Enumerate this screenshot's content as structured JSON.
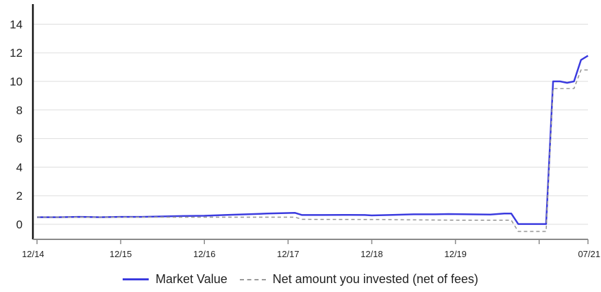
{
  "chart_data": {
    "type": "line",
    "title": "",
    "xlabel": "",
    "ylabel": "",
    "ylim": [
      -1,
      15
    ],
    "y_ticks": [
      0,
      2,
      4,
      6,
      8,
      10,
      12,
      14
    ],
    "x_ticks": [
      "12/14",
      "12/15",
      "12/16",
      "12/17",
      "12/18",
      "12/19",
      "07/21"
    ],
    "grid": "horizontal",
    "legend_position": "bottom",
    "colors": {
      "market_value": "#3a3adf",
      "net_invested": "#999999",
      "grid": "#dddddd",
      "axis": "#888888"
    },
    "series": [
      {
        "name": "Market Value",
        "style": "solid",
        "points": [
          [
            "2014-12",
            0.5
          ],
          [
            "2015-03",
            0.5
          ],
          [
            "2015-06",
            0.52
          ],
          [
            "2015-09",
            0.5
          ],
          [
            "2015-12",
            0.52
          ],
          [
            "2016-03",
            0.52
          ],
          [
            "2016-06",
            0.55
          ],
          [
            "2016-09",
            0.58
          ],
          [
            "2016-12",
            0.6
          ],
          [
            "2017-03",
            0.65
          ],
          [
            "2017-06",
            0.7
          ],
          [
            "2017-09",
            0.75
          ],
          [
            "2017-11",
            0.78
          ],
          [
            "2018-01",
            0.8
          ],
          [
            "2018-02",
            0.65
          ],
          [
            "2018-05",
            0.65
          ],
          [
            "2018-08",
            0.66
          ],
          [
            "2018-11",
            0.65
          ],
          [
            "2018-12",
            0.62
          ],
          [
            "2019-03",
            0.66
          ],
          [
            "2019-06",
            0.7
          ],
          [
            "2019-09",
            0.7
          ],
          [
            "2019-11",
            0.72
          ],
          [
            "2020-02",
            0.7
          ],
          [
            "2020-05",
            0.68
          ],
          [
            "2020-07",
            0.75
          ],
          [
            "2020-08",
            0.75
          ],
          [
            "2020-09",
            0.02
          ],
          [
            "2020-12",
            0.02
          ],
          [
            "2021-01",
            0.02
          ],
          [
            "2021-02",
            10.0
          ],
          [
            "2021-03",
            10.0
          ],
          [
            "2021-04",
            9.9
          ],
          [
            "2021-05",
            10.0
          ],
          [
            "2021-06",
            11.5
          ],
          [
            "2021-07",
            11.8
          ]
        ]
      },
      {
        "name": "Net amount you invested (net of fees)",
        "style": "dashed",
        "points": [
          [
            "2014-12",
            0.5
          ],
          [
            "2015-06",
            0.5
          ],
          [
            "2016-06",
            0.5
          ],
          [
            "2017-06",
            0.5
          ],
          [
            "2018-01",
            0.5
          ],
          [
            "2018-02",
            0.35
          ],
          [
            "2019-01",
            0.33
          ],
          [
            "2019-09",
            0.3
          ],
          [
            "2020-01",
            0.28
          ],
          [
            "2020-08",
            0.28
          ],
          [
            "2020-09",
            -0.5
          ],
          [
            "2021-01",
            -0.5
          ],
          [
            "2021-02",
            9.5
          ],
          [
            "2021-04",
            9.5
          ],
          [
            "2021-05",
            9.5
          ],
          [
            "2021-06",
            10.8
          ],
          [
            "2021-07",
            10.8
          ]
        ]
      }
    ]
  }
}
